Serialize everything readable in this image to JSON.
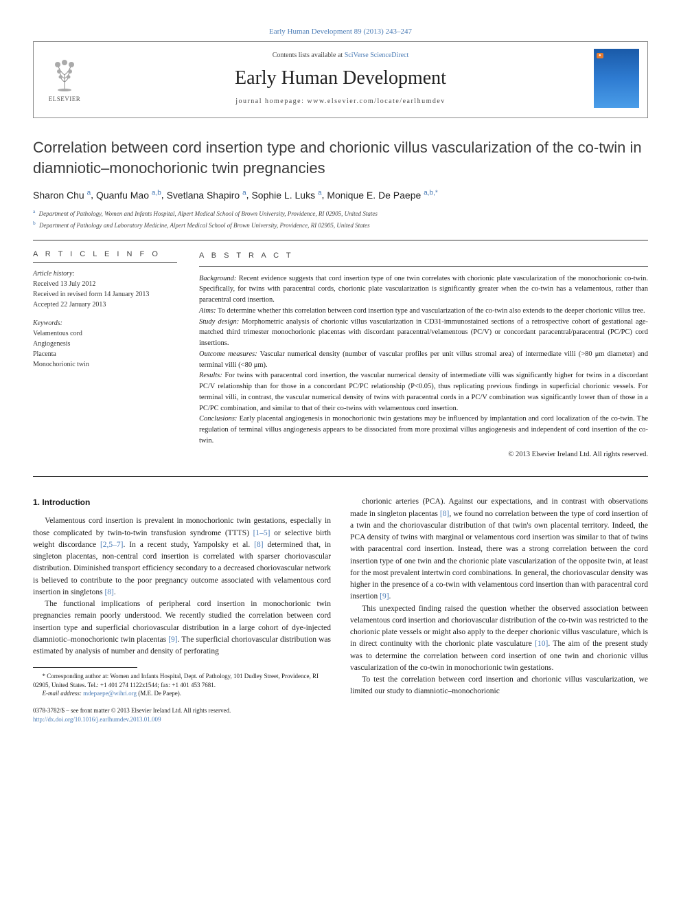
{
  "top_link": "Early Human Development 89 (2013) 243–247",
  "header": {
    "contents_prefix": "Contents lists available at ",
    "contents_link": "SciVerse ScienceDirect",
    "journal": "Early Human Development",
    "homepage": "journal homepage: www.elsevier.com/locate/earlhumdev",
    "publisher": "ELSEVIER",
    "thumb_badge": "●"
  },
  "title": "Correlation between cord insertion type and chorionic villus vascularization of the co-twin in diamniotic–monochorionic twin pregnancies",
  "authors": [
    {
      "name": "Sharon Chu",
      "aff": "a"
    },
    {
      "name": "Quanfu Mao",
      "aff": "a,b"
    },
    {
      "name": "Svetlana Shapiro",
      "aff": "a"
    },
    {
      "name": "Sophie L. Luks",
      "aff": "a"
    },
    {
      "name": "Monique E. De Paepe",
      "aff": "a,b,*"
    }
  ],
  "affiliations": [
    {
      "label": "a",
      "text": "Department of Pathology, Women and Infants Hospital, Alpert Medical School of Brown University, Providence, RI 02905, United States"
    },
    {
      "label": "b",
      "text": "Department of Pathology and Laboratory Medicine, Alpert Medical School of Brown University, Providence, RI 02905, United States"
    }
  ],
  "info": {
    "heading": "A R T I C L E   I N F O",
    "history_label": "Article history:",
    "received": "Received 13 July 2012",
    "revised": "Received in revised form 14 January 2013",
    "accepted": "Accepted 22 January 2013",
    "keywords_label": "Keywords:",
    "keywords": [
      "Velamentous cord",
      "Angiogenesis",
      "Placenta",
      "Monochorionic twin"
    ]
  },
  "abstract": {
    "heading": "A B S T R A C T",
    "background_label": "Background:",
    "background": "Recent evidence suggests that cord insertion type of one twin correlates with chorionic plate vascularization of the monochorionic co-twin. Specifically, for twins with paracentral cords, chorionic plate vascularization is significantly greater when the co-twin has a velamentous, rather than paracentral cord insertion.",
    "aims_label": "Aims:",
    "aims": "To determine whether this correlation between cord insertion type and vascularization of the co-twin also extends to the deeper chorionic villus tree.",
    "design_label": "Study design:",
    "design": "Morphometric analysis of chorionic villus vascularization in CD31-immunostained sections of a retrospective cohort of gestational age-matched third trimester monochorionic placentas with discordant paracentral/velamentous (PC/V) or concordant paracentral/paracentral (PC/PC) cord insertions.",
    "outcome_label": "Outcome measures:",
    "outcome": "Vascular numerical density (number of vascular profiles per unit villus stromal area) of intermediate villi (>80 μm diameter) and terminal villi (<80 μm).",
    "results_label": "Results:",
    "results": "For twins with paracentral cord insertion, the vascular numerical density of intermediate villi was significantly higher for twins in a discordant PC/V relationship than for those in a concordant PC/PC relationship (P<0.05), thus replicating previous findings in superficial chorionic vessels. For terminal villi, in contrast, the vascular numerical density of twins with paracentral cords in a PC/V combination was significantly lower than of those in a PC/PC combination, and similar to that of their co-twins with velamentous cord insertion.",
    "conclusions_label": "Conclusions:",
    "conclusions": "Early placental angiogenesis in monochorionic twin gestations may be influenced by implantation and cord localization of the co-twin. The regulation of terminal villus angiogenesis appears to be dissociated from more proximal villus angiogenesis and independent of cord insertion of the co-twin.",
    "copyright": "© 2013 Elsevier Ireland Ltd. All rights reserved."
  },
  "body": {
    "section_heading": "1. Introduction",
    "p1a": "Velamentous cord insertion is prevalent in monochorionic twin gestations, especially in those complicated by twin-to-twin transfusion syndrome (TTTS) ",
    "ref1": "[1–5]",
    "p1b": " or selective birth weight discordance ",
    "ref2": "[2,5–7]",
    "p1c": ". In a recent study, Yampolsky et al. ",
    "ref3": "[8]",
    "p1d": " determined that, in singleton placentas, non-central cord insertion is correlated with sparser choriovascular distribution. Diminished transport efficiency secondary to a decreased choriovascular network is believed to contribute to the poor pregnancy outcome associated with velamentous cord insertion in singletons ",
    "ref4": "[8]",
    "p1e": ".",
    "p2a": "The functional implications of peripheral cord insertion in monochorionic twin pregnancies remain poorly understood. We recently studied the correlation between cord insertion type and superficial choriovascular distribution in a large cohort of dye-injected diamniotic–monochorionic twin placentas ",
    "ref5": "[9]",
    "p2b": ". The superficial choriovascular distribution was estimated by analysis of number and density of perforating",
    "p3a": "chorionic arteries (PCA). Against our expectations, and in contrast with observations made in singleton placentas ",
    "ref6": "[8]",
    "p3b": ", we found no correlation between the type of cord insertion of a twin and the choriovascular distribution of that twin's own placental territory. Indeed, the PCA density of twins with marginal or velamentous cord insertion was similar to that of twins with paracentral cord insertion. Instead, there was a strong correlation between the cord insertion type of one twin and the chorionic plate vascularization of the opposite twin, at least for the most prevalent intertwin cord combinations. In general, the choriovascular density was higher in the presence of a co-twin with velamentous cord insertion than with paracentral cord insertion ",
    "ref7": "[9]",
    "p3c": ".",
    "p4a": "This unexpected finding raised the question whether the observed association between velamentous cord insertion and choriovascular distribution of the co-twin was restricted to the chorionic plate vessels or might also apply to the deeper chorionic villus vasculature, which is in direct continuity with the chorionic plate vasculature ",
    "ref8": "[10]",
    "p4b": ". The aim of the present study was to determine the correlation between cord insertion of one twin and chorionic villus vascularization of the co-twin in monochorionic twin gestations.",
    "p5": "To test the correlation between cord insertion and chorionic villus vascularization, we limited our study to diamniotic–monochorionic"
  },
  "footnotes": {
    "corr": "* Corresponding author at: Women and Infants Hospital, Dept. of Pathology, 101 Dudley Street, Providence, RI 02905, United States. Tel.: +1 401 274 1122x1544; fax: +1 401 453 7681.",
    "email_label": "E-mail address:",
    "email": "mdepaepe@wihri.org",
    "email_suffix": "(M.E. De Paepe)."
  },
  "footer": {
    "issn": "0378-3782/$ – see front matter © 2013 Elsevier Ireland Ltd. All rights reserved.",
    "doi": "http://dx.doi.org/10.1016/j.earlhumdev.2013.01.009"
  },
  "colors": {
    "link": "#4a7bb5",
    "text": "#1a1a1a",
    "rule": "#333333"
  }
}
